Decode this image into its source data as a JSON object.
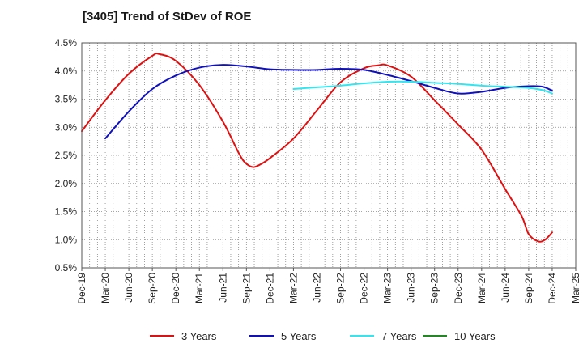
{
  "chart_data": {
    "type": "line",
    "title": "[3405]  Trend of StDev of ROE",
    "xlabel": "",
    "ylabel": "",
    "x_ticks": [
      "Dec-19",
      "Mar-20",
      "Jun-20",
      "Sep-20",
      "Dec-20",
      "Mar-21",
      "Jun-21",
      "Sep-21",
      "Dec-21",
      "Mar-22",
      "Jun-22",
      "Sep-22",
      "Dec-22",
      "Mar-23",
      "Jun-23",
      "Sep-23",
      "Dec-23",
      "Mar-24",
      "Jun-24",
      "Sep-24",
      "Dec-24",
      "Mar-25"
    ],
    "y_ticks": [
      "4.5%",
      "4.0%",
      "3.5%",
      "3.0%",
      "2.5%",
      "2.0%",
      "1.5%",
      "1.0%",
      "0.5%"
    ],
    "ylim": [
      0.5,
      4.5
    ],
    "grid": true,
    "legend_position": "bottom",
    "series": [
      {
        "name": "3 Years",
        "color": "#dd1111",
        "values": [
          [
            0,
            2.93
          ],
          [
            1,
            3.48
          ],
          [
            2,
            3.95
          ],
          [
            3,
            4.27
          ],
          [
            3.3,
            4.3
          ],
          [
            4,
            4.18
          ],
          [
            5,
            3.75
          ],
          [
            6,
            3.1
          ],
          [
            6.7,
            2.52
          ],
          [
            7,
            2.35
          ],
          [
            7.3,
            2.29
          ],
          [
            7.6,
            2.34
          ],
          [
            8,
            2.45
          ],
          [
            9,
            2.8
          ],
          [
            10,
            3.3
          ],
          [
            11,
            3.8
          ],
          [
            12,
            4.05
          ],
          [
            12.6,
            4.1
          ],
          [
            13,
            4.1
          ],
          [
            14,
            3.9
          ],
          [
            15,
            3.48
          ],
          [
            16,
            3.05
          ],
          [
            17,
            2.6
          ],
          [
            18,
            1.9
          ],
          [
            18.7,
            1.42
          ],
          [
            19,
            1.1
          ],
          [
            19.4,
            0.97
          ],
          [
            19.7,
            1.0
          ],
          [
            20,
            1.13
          ]
        ]
      },
      {
        "name": "5 Years",
        "color": "#1111bb",
        "values": [
          [
            1,
            2.8
          ],
          [
            2,
            3.28
          ],
          [
            3,
            3.68
          ],
          [
            4,
            3.92
          ],
          [
            5,
            4.06
          ],
          [
            6,
            4.11
          ],
          [
            7,
            4.08
          ],
          [
            8,
            4.03
          ],
          [
            9,
            4.02
          ],
          [
            10,
            4.02
          ],
          [
            11,
            4.04
          ],
          [
            12,
            4.02
          ],
          [
            13,
            3.93
          ],
          [
            14,
            3.82
          ],
          [
            15,
            3.7
          ],
          [
            16,
            3.6
          ],
          [
            17,
            3.63
          ],
          [
            18,
            3.7
          ],
          [
            19,
            3.73
          ],
          [
            19.6,
            3.72
          ],
          [
            20,
            3.65
          ]
        ]
      },
      {
        "name": "7 Years",
        "color": "#33e5ee",
        "values": [
          [
            9,
            3.68
          ],
          [
            10,
            3.71
          ],
          [
            11,
            3.74
          ],
          [
            12,
            3.78
          ],
          [
            13,
            3.81
          ],
          [
            14,
            3.81
          ],
          [
            15,
            3.79
          ],
          [
            16,
            3.77
          ],
          [
            17,
            3.74
          ],
          [
            18,
            3.72
          ],
          [
            19,
            3.7
          ],
          [
            19.6,
            3.66
          ],
          [
            20,
            3.6
          ]
        ]
      },
      {
        "name": "10 Years",
        "color": "#228822",
        "values": []
      }
    ]
  }
}
